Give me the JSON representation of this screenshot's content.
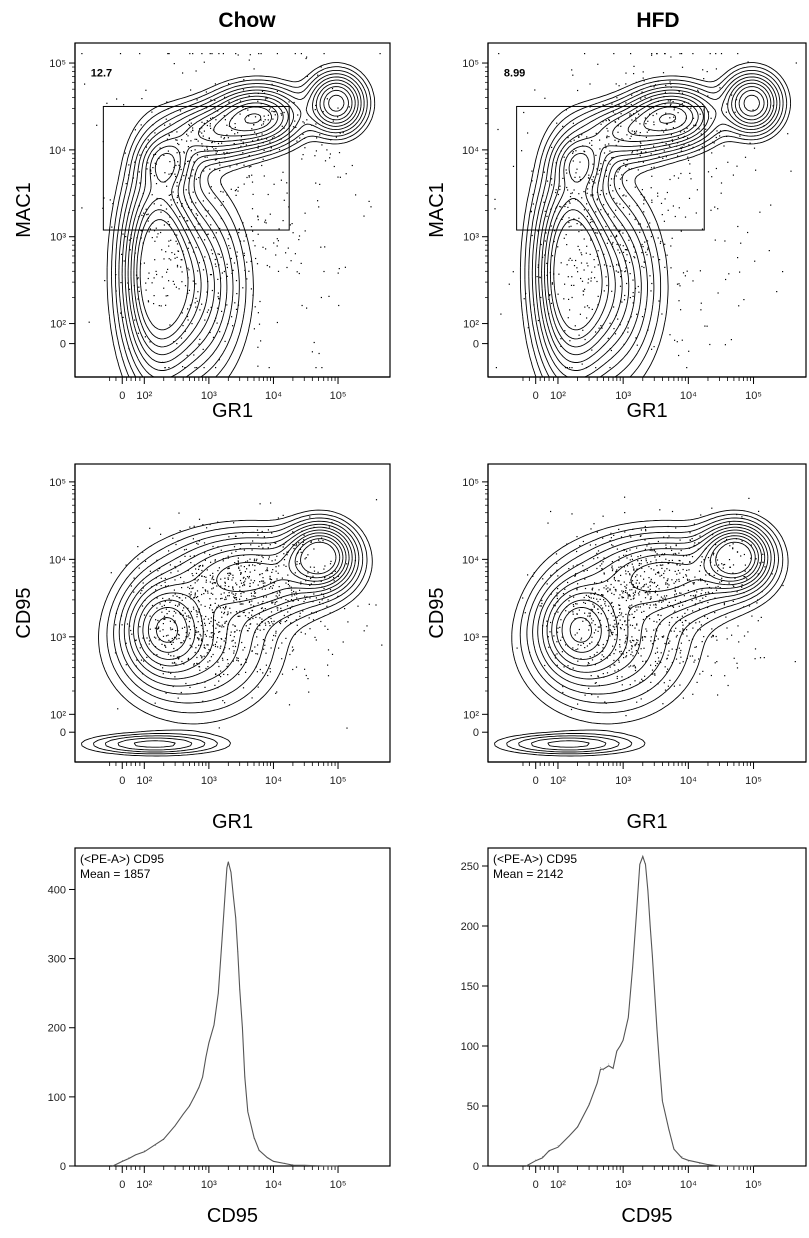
{
  "columns": [
    "Chow",
    "HFD"
  ],
  "panels": [
    {
      "row": 0,
      "col": 0,
      "type": "contour",
      "xlabel": "GR1",
      "ylabel": "MAC1",
      "gate_value": "12.7",
      "shape": "mac1"
    },
    {
      "row": 0,
      "col": 1,
      "type": "contour",
      "xlabel": "GR1",
      "ylabel": "MAC1",
      "gate_value": "8.99",
      "shape": "mac1"
    },
    {
      "row": 1,
      "col": 0,
      "type": "contour",
      "xlabel": "GR1",
      "ylabel": "CD95",
      "shape": "cd95"
    },
    {
      "row": 1,
      "col": 1,
      "type": "contour",
      "xlabel": "GR1",
      "ylabel": "CD95",
      "shape": "cd95"
    },
    {
      "row": 2,
      "col": 0,
      "type": "histogram",
      "xlabel": "CD95",
      "annotation": [
        "(<PE-A>) CD95",
        "Mean = 1857"
      ]
    },
    {
      "row": 2,
      "col": 1,
      "type": "histogram",
      "xlabel": "CD95",
      "annotation": [
        "(<PE-A>) CD95",
        "Mean = 2142"
      ]
    }
  ],
  "chart_data": [
    {
      "type": "line",
      "title": "Chow",
      "xlabel": "CD95",
      "ylabel": "",
      "x_scale": "biexponential",
      "x_ticks": [
        "0",
        "10²",
        "10³",
        "10⁴",
        "10⁵"
      ],
      "y_ticks": [
        0,
        100,
        200,
        300,
        400
      ],
      "ylim": [
        0,
        460
      ],
      "annotation": "(<PE-A>) CD95 Mean = 1857",
      "x": [
        -60,
        0,
        30,
        60,
        100,
        150,
        200,
        300,
        400,
        500,
        600,
        700,
        800,
        900,
        1000,
        1200,
        1400,
        1600,
        1800,
        1900,
        2000,
        2200,
        2400,
        2600,
        2800,
        3000,
        3300,
        3600,
        4000,
        5000,
        6000,
        8000,
        10000,
        15000,
        20000,
        30000,
        60000,
        100000
      ],
      "y": [
        0,
        8,
        12,
        16,
        22,
        30,
        38,
        58,
        75,
        88,
        100,
        113,
        130,
        158,
        178,
        205,
        250,
        330,
        400,
        430,
        440,
        425,
        390,
        360,
        310,
        255,
        200,
        130,
        80,
        40,
        22,
        12,
        7,
        4,
        2,
        1,
        0,
        0
      ]
    },
    {
      "type": "line",
      "title": "HFD",
      "xlabel": "CD95",
      "ylabel": "",
      "x_scale": "biexponential",
      "x_ticks": [
        "0",
        "10²",
        "10³",
        "10⁴",
        "10⁵"
      ],
      "y_ticks": [
        0,
        50,
        100,
        150,
        200,
        250
      ],
      "ylim": [
        0,
        265
      ],
      "annotation": "(<PE-A>) CD95 Mean = 2142",
      "x": [
        -60,
        0,
        30,
        60,
        100,
        150,
        200,
        300,
        400,
        450,
        500,
        600,
        700,
        800,
        900,
        1000,
        1200,
        1400,
        1600,
        1800,
        2000,
        2200,
        2400,
        2600,
        2800,
        3000,
        3300,
        3600,
        4000,
        5000,
        6000,
        8000,
        10000,
        15000,
        20000,
        30000,
        60000,
        100000
      ],
      "y": [
        0,
        5,
        8,
        12,
        17,
        25,
        33,
        52,
        70,
        82,
        80,
        85,
        82,
        95,
        100,
        105,
        125,
        165,
        210,
        250,
        258,
        252,
        230,
        200,
        175,
        150,
        115,
        85,
        55,
        30,
        15,
        8,
        4,
        2,
        1,
        0,
        0,
        0
      ]
    }
  ]
}
